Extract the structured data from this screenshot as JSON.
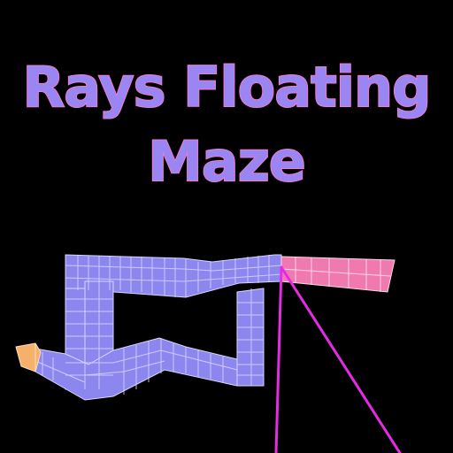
{
  "title": {
    "line1": "Rays Floating",
    "line2": "Maze"
  },
  "colors": {
    "background": "#000000",
    "title_fill": "#9a86f2",
    "title_outline": "#f27ad6",
    "maze_block": "#8c87ef",
    "maze_block_dark": "#6f6ad8",
    "maze_grid": "#d8d6ff",
    "goal_block": "#f07ab0",
    "start_block": "#f5b06a",
    "ray": "#e62be6"
  },
  "maze": {
    "start_marker": "start-block",
    "goal_marker": "goal-path"
  }
}
